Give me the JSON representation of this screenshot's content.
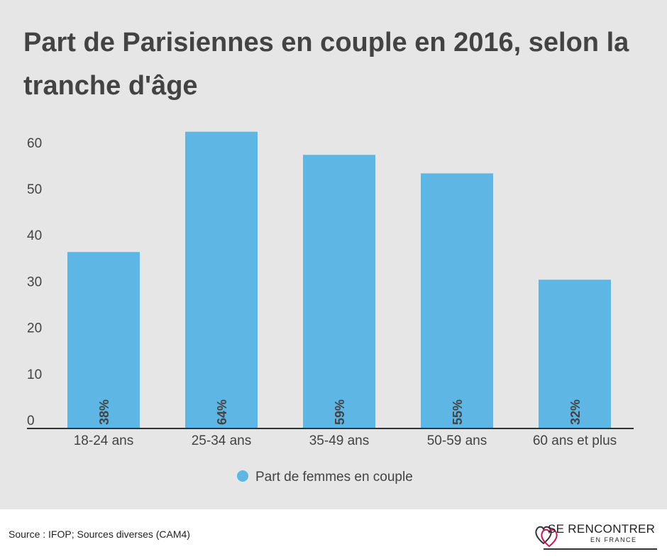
{
  "title": "Part de Parisiennes en couple en 2016, selon la tranche d'âge",
  "chart_data": {
    "type": "bar",
    "title": "Part de Parisiennes en couple en 2016, selon la tranche d'âge",
    "categories": [
      "18-24 ans",
      "25-34 ans",
      "35-49 ans",
      "50-59 ans",
      "60 ans et plus"
    ],
    "series": [
      {
        "name": "Part de femmes en couple",
        "values": [
          38,
          64,
          59,
          55,
          32
        ],
        "labels": [
          "38%",
          "64%",
          "59%",
          "55%",
          "32%"
        ],
        "color": "#5db6e4"
      }
    ],
    "yticks": [
      0,
      10,
      20,
      30,
      40,
      50,
      60
    ],
    "ylim": [
      0,
      60
    ],
    "xlabel": "",
    "ylabel": "",
    "grid": false,
    "legend": "bottom-center"
  },
  "footer": {
    "source": "Source : IFOP; Sources diverses (CAM4)",
    "brand_line1": "SE RENCONTRER",
    "brand_line2": "EN FRANCE"
  },
  "colors": {
    "background": "#e6e6e6",
    "bar": "#5db6e4",
    "text": "#434343",
    "logo_accent": "#c2185b"
  }
}
